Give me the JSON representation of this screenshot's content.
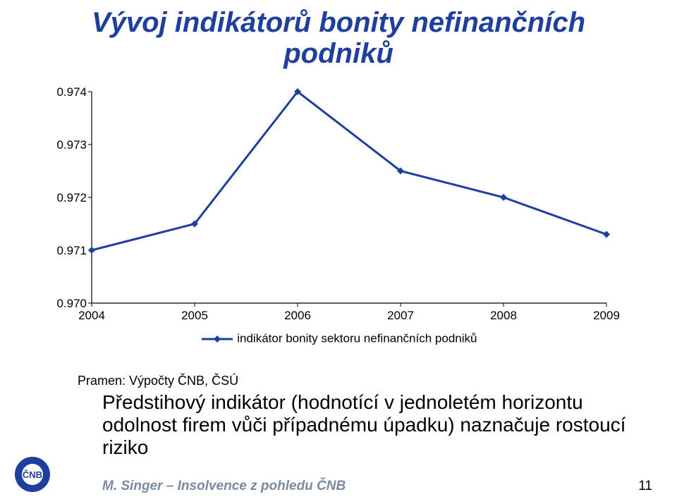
{
  "title": {
    "line1": "Vývoj indikátorů bonity nefinančních",
    "line2": "podniků",
    "color": "#1f3f9e",
    "fontsize": 40
  },
  "chart": {
    "type": "line",
    "x_categories": [
      "2004",
      "2005",
      "2006",
      "2007",
      "2008",
      "2009"
    ],
    "y_values": [
      0.971,
      0.9715,
      0.974,
      0.9725,
      0.972,
      0.9713
    ],
    "ylim": [
      0.97,
      0.974
    ],
    "ytick_step": 0.001,
    "y_ticks": [
      "0.970",
      "0.971",
      "0.972",
      "0.973",
      "0.974"
    ],
    "line_color": "#1f3fa0",
    "line_width": 3,
    "marker_style": "diamond",
    "marker_size": 10,
    "marker_color": "#1f3fa0",
    "background_color": "#ffffff",
    "axis_color": "#000000",
    "tick_fontsize": 17,
    "tick_color": "#000000",
    "legend": {
      "label": "indikátor bonity sektoru nefinančních podniků",
      "fontsize": 17,
      "color": "#000000",
      "line_color": "#1f3fa0",
      "position": "bottom-center"
    }
  },
  "source": {
    "text": "Pramen: Výpočty ČNB, ČSÚ",
    "fontsize": 18,
    "color": "#000000"
  },
  "body": {
    "text": "Předstihový indikátor (hodnotící v jednoletém horizontu odolnost firem vůči případnému úpadku) naznačuje rostoucí riziko",
    "fontsize": 28,
    "color": "#000000"
  },
  "footer": {
    "text": "M. Singer – Insolvence z pohledu ČNB",
    "color": "#7a8aa0",
    "fontsize": 19
  },
  "pagenum": {
    "text": "11",
    "color": "#000000",
    "fontsize": 19
  },
  "logo": {
    "circle_color": "#1f3fa0",
    "text": "ČNB",
    "text_color": "#ffffff"
  }
}
